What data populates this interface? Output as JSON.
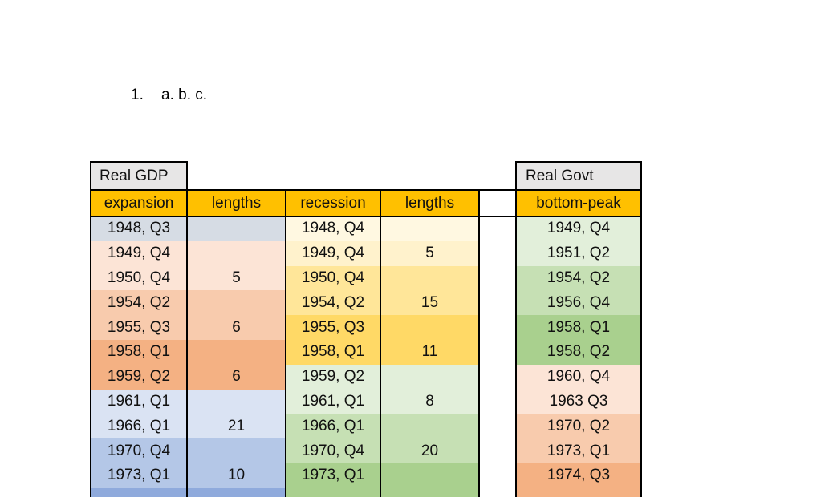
{
  "list_item": {
    "number": "1.",
    "text": "a. b. c."
  },
  "table": {
    "group_headers": [
      "Real GDP",
      "Real Govt"
    ],
    "headers": [
      "expansion",
      "lengths",
      "recession",
      "lengths",
      "bottom-peak"
    ],
    "rows": [
      [
        "1948, Q3",
        null,
        "1948, Q4",
        null,
        "1949, Q4"
      ],
      [
        "1949, Q4",
        null,
        "1949, Q4",
        "5",
        "1951, Q2"
      ],
      [
        "1950, Q4",
        "5",
        "1950, Q4",
        null,
        "1954, Q2"
      ],
      [
        "1954, Q2",
        null,
        "1954, Q2",
        "15",
        "1956, Q4"
      ],
      [
        "1955, Q3",
        "6",
        "1955, Q3",
        null,
        "1958, Q1"
      ],
      [
        "1958, Q1",
        null,
        "1958, Q1",
        "11",
        "1958, Q2"
      ],
      [
        "1959, Q2",
        "6",
        "1959, Q2",
        null,
        "1960, Q4"
      ],
      [
        "1961, Q1",
        null,
        "1961, Q1",
        "8",
        "1963 Q3"
      ],
      [
        "1966, Q1",
        "21",
        "1966, Q1",
        null,
        "1970, Q2"
      ],
      [
        "1970, Q4",
        null,
        "1970, Q4",
        "20",
        "1973, Q1"
      ],
      [
        "1973, Q1",
        "10",
        "1973, Q1",
        null,
        "1974, Q3"
      ]
    ]
  }
}
